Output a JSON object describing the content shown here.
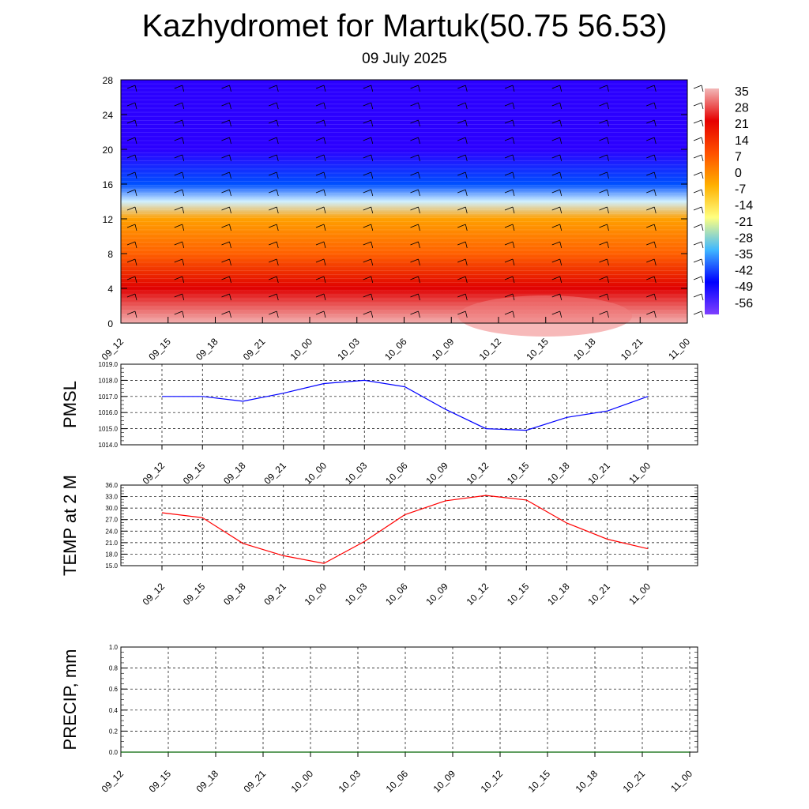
{
  "title": "Kazhydromet for Martuk(50.75 56.53)",
  "subtitle": "09 July 2025",
  "time_labels": [
    "09_12",
    "09_15",
    "09_18",
    "09_21",
    "10_00",
    "10_03",
    "10_06",
    "10_09",
    "10_12",
    "10_15",
    "10_18",
    "10_21",
    "11_00"
  ],
  "chart_data": [
    {
      "type": "heatmap",
      "name": "",
      "x": [
        "09_12",
        "09_15",
        "09_18",
        "09_21",
        "10_00",
        "10_03",
        "10_06",
        "10_09",
        "10_12",
        "10_15",
        "10_18",
        "10_21",
        "11_00"
      ],
      "ylim": [
        0,
        28
      ],
      "yticks": [
        0,
        4,
        8,
        12,
        16,
        20,
        24,
        28
      ],
      "colorbar": {
        "labels": [
          "35",
          "28",
          "21",
          "14",
          "7",
          "0",
          "-7",
          "-14",
          "-21",
          "-28",
          "-35",
          "-42",
          "-49",
          "-56"
        ],
        "colors": [
          "#f2b8b8",
          "#e60000",
          "#ff5000",
          "#ffb000",
          "#ffff80",
          "#40b8ff",
          "#0000ff",
          "#8040ff"
        ]
      },
      "layers": [
        {
          "level": 0,
          "temp": 30
        },
        {
          "level": 4,
          "temp": 24
        },
        {
          "level": 8,
          "temp": 12
        },
        {
          "level": 12,
          "temp": 2
        },
        {
          "level": 14,
          "temp": -14
        },
        {
          "level": 16,
          "temp": -35
        },
        {
          "level": 20,
          "temp": -52
        },
        {
          "level": 24,
          "temp": -55
        },
        {
          "level": 28,
          "temp": -54
        }
      ]
    },
    {
      "type": "line",
      "ylabel": "PMSL",
      "x": [
        "09_12",
        "09_15",
        "09_18",
        "09_21",
        "10_00",
        "10_03",
        "10_06",
        "10_09",
        "10_12",
        "10_15",
        "10_18",
        "10_21",
        "11_00"
      ],
      "series": [
        {
          "values": [
            1017.0,
            1017.0,
            1016.7,
            1017.2,
            1017.8,
            1018.0,
            1017.6,
            1016.2,
            1015.0,
            1014.9,
            1015.7,
            1016.1,
            1017.0
          ],
          "color": "#0000ff"
        }
      ],
      "ylim": [
        1014.0,
        1019.0
      ],
      "yticks": [
        "1014.0",
        "1015.0",
        "1016.0",
        "1017.0",
        "1018.0",
        "1019.0"
      ],
      "grid": true
    },
    {
      "type": "line",
      "ylabel": "TEMP at 2 M",
      "x": [
        "09_12",
        "09_15",
        "09_18",
        "09_21",
        "10_00",
        "10_03",
        "10_06",
        "10_09",
        "10_12",
        "10_15",
        "10_18",
        "10_21",
        "11_00"
      ],
      "series": [
        {
          "values": [
            28.8,
            27.5,
            20.8,
            17.6,
            15.6,
            21.3,
            28.3,
            31.9,
            33.3,
            32.1,
            26.1,
            21.9,
            19.4
          ],
          "color": "#ff0000"
        }
      ],
      "ylim": [
        15.0,
        36.0
      ],
      "yticks": [
        "15.0",
        "18.0",
        "21.0",
        "24.0",
        "27.0",
        "30.0",
        "33.0",
        "36.0"
      ],
      "grid": true
    },
    {
      "type": "line",
      "ylabel": "PRECIP, mm",
      "x": [
        "09_12",
        "09_15",
        "09_18",
        "09_21",
        "10_00",
        "10_03",
        "10_06",
        "10_09",
        "10_12",
        "10_15",
        "10_18",
        "10_21",
        "11_00"
      ],
      "series": [
        {
          "values": [
            0,
            0,
            0,
            0,
            0,
            0,
            0,
            0,
            0,
            0,
            0,
            0,
            0
          ],
          "color": "#006400"
        }
      ],
      "ylim": [
        0.0,
        1.0
      ],
      "yticks": [
        "0.0",
        "0.2",
        "0.4",
        "0.6",
        "0.8",
        "1.0"
      ],
      "grid": true
    }
  ]
}
